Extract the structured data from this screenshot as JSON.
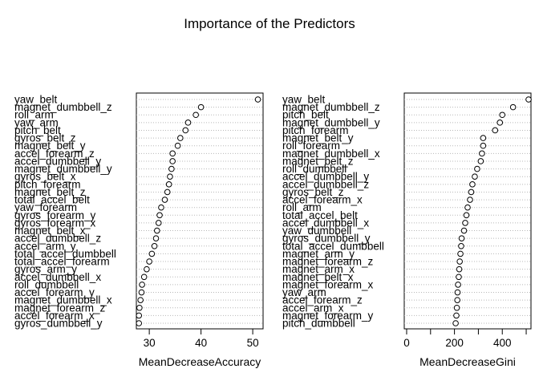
{
  "title": "Importance of the Predictors",
  "chart_data": [
    {
      "type": "scatter",
      "subtype": "dotchart",
      "xlabel": "MeanDecreaseAccuracy",
      "xlim": [
        27.5,
        52
      ],
      "ticks": [
        30,
        40,
        50
      ],
      "grid": "dotted",
      "categories": [
        "yaw_belt",
        "magnet_dumbbell_z",
        "roll_arm",
        "yaw_arm",
        "pitch_belt",
        "gyros_belt_z",
        "magnet_belt_y",
        "accel_forearm_z",
        "accel_dumbbell_y",
        "magnet_dumbbell_y",
        "gyros_belt_x",
        "pitch_forearm",
        "magnet_belt_z",
        "total_accel_belt",
        "yaw_forearm",
        "gyros_forearm_y",
        "gyros_forearm_x",
        "magnet_belt_x",
        "accel_dumbbell_z",
        "accel_arm_y",
        "total_accel_dumbbell",
        "total_accel_forearm",
        "gyros_arm_y",
        "accel_dumbbell_x",
        "roll_dumbbell",
        "accel_forearm_y",
        "magnet_dumbbell_x",
        "magnet_forearm_z",
        "accel_forearm_x",
        "gyros_dumbbell_y"
      ],
      "values": [
        51,
        40,
        39,
        37.5,
        37,
        36,
        35.5,
        34.5,
        34.5,
        34.3,
        34,
        33.8,
        33.5,
        33,
        32.3,
        32,
        31.8,
        31.5,
        31.3,
        31,
        30.5,
        30,
        29.5,
        29,
        28.6,
        28.5,
        28.3,
        28.1,
        28,
        28
      ]
    },
    {
      "type": "scatter",
      "subtype": "dotchart",
      "xlabel": "MeanDecreaseGini",
      "xlim": [
        -10,
        520
      ],
      "ticks": [
        0,
        100,
        200,
        300,
        400,
        500
      ],
      "tick_labels": [
        "0",
        "",
        "200",
        "",
        "400",
        ""
      ],
      "grid": "dotted",
      "categories": [
        "yaw_belt",
        "magnet_dumbbell_z",
        "pitch_belt",
        "magnet_dumbbell_y",
        "pitch_forearm",
        "magnet_belt_y",
        "roll_forearm",
        "magnet_dumbbell_x",
        "magnet_belt_z",
        "roll_dumbbell",
        "accel_dumbbell_y",
        "accel_dumbbell_z",
        "gyros_belt_z",
        "accel_forearm_x",
        "roll_arm",
        "total_accel_belt",
        "accel_dumbbell_x",
        "yaw_dumbbell",
        "gyros_dumbbell_y",
        "total_accel_dumbbell",
        "magnet_arm_y",
        "magnet_forearm_z",
        "magnet_arm_x",
        "magnet_belt_x",
        "magnet_forearm_x",
        "yaw_arm",
        "accel_forearm_z",
        "accel_arm_x",
        "magnet_forearm_y",
        "pitch_dumbbell"
      ],
      "values": [
        510,
        445,
        400,
        390,
        370,
        320,
        320,
        315,
        310,
        295,
        285,
        275,
        270,
        265,
        255,
        250,
        245,
        240,
        230,
        228,
        225,
        222,
        220,
        218,
        215,
        213,
        212,
        210,
        208,
        205
      ]
    }
  ]
}
